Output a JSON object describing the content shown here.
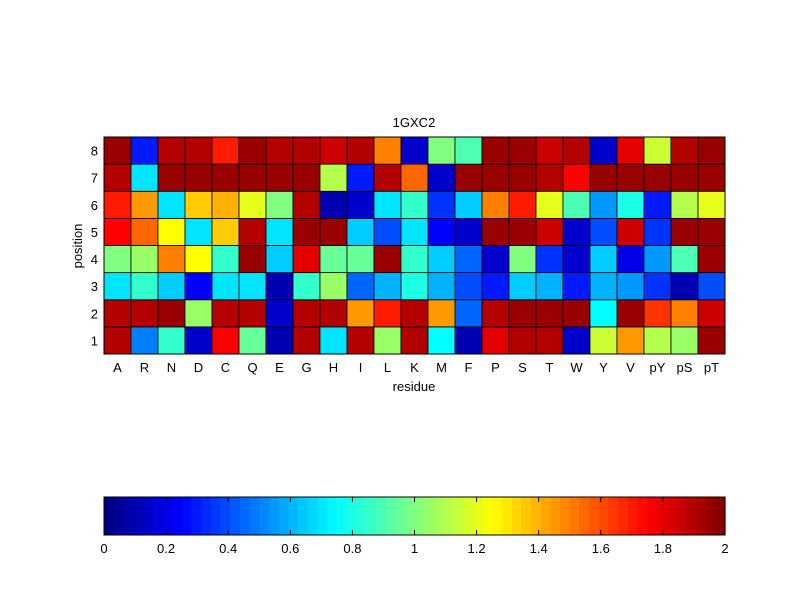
{
  "chart_data": {
    "type": "heatmap",
    "title": "1GXC2",
    "xlabel": "residue",
    "ylabel": "position",
    "x_categories": [
      "A",
      "R",
      "N",
      "D",
      "C",
      "Q",
      "E",
      "G",
      "H",
      "I",
      "L",
      "K",
      "M",
      "F",
      "P",
      "S",
      "T",
      "W",
      "Y",
      "V",
      "pY",
      "pS",
      "pT"
    ],
    "y_categories": [
      "1",
      "2",
      "3",
      "4",
      "5",
      "6",
      "7",
      "8"
    ],
    "values": [
      [
        1.9,
        0.5,
        0.85,
        0.15,
        1.75,
        0.95,
        0.1,
        1.9,
        0.7,
        1.9,
        1.05,
        1.9,
        0.75,
        0.1,
        1.8,
        1.9,
        1.9,
        0.15,
        1.15,
        1.45,
        1.1,
        1.05,
        1.95
      ],
      [
        1.9,
        1.9,
        1.95,
        1.05,
        1.9,
        1.9,
        0.15,
        1.9,
        1.9,
        1.45,
        1.7,
        1.9,
        1.45,
        0.45,
        1.9,
        1.95,
        1.95,
        1.95,
        0.75,
        1.95,
        1.65,
        1.5,
        1.85
      ],
      [
        0.7,
        0.85,
        0.65,
        0.25,
        0.7,
        0.7,
        0.1,
        0.85,
        1.05,
        0.45,
        0.6,
        0.8,
        0.6,
        0.4,
        0.3,
        0.65,
        0.6,
        0.3,
        0.6,
        0.55,
        0.35,
        0.1,
        0.4
      ],
      [
        1.0,
        1.05,
        1.5,
        1.25,
        0.85,
        1.95,
        0.65,
        1.8,
        0.95,
        0.95,
        1.95,
        0.85,
        0.65,
        0.45,
        0.15,
        1.0,
        0.35,
        0.15,
        0.65,
        0.2,
        0.55,
        0.9,
        1.95
      ],
      [
        1.75,
        1.55,
        1.25,
        0.7,
        1.35,
        1.9,
        0.7,
        1.95,
        1.95,
        0.65,
        0.4,
        0.7,
        0.25,
        0.15,
        1.95,
        1.95,
        1.85,
        0.15,
        0.4,
        1.85,
        0.35,
        1.95,
        1.95
      ],
      [
        1.7,
        1.45,
        0.7,
        1.35,
        1.4,
        1.2,
        1.0,
        1.9,
        0.1,
        0.15,
        0.7,
        0.85,
        0.35,
        0.65,
        1.5,
        1.7,
        1.2,
        0.9,
        0.55,
        0.8,
        0.3,
        1.1,
        1.2
      ],
      [
        1.9,
        0.7,
        1.95,
        1.95,
        1.95,
        1.95,
        1.95,
        1.95,
        1.1,
        0.3,
        1.9,
        1.55,
        0.15,
        1.95,
        1.95,
        1.95,
        1.9,
        1.75,
        1.95,
        1.95,
        1.95,
        1.95,
        1.95
      ],
      [
        1.95,
        0.3,
        1.9,
        1.9,
        1.7,
        1.95,
        1.9,
        1.9,
        1.85,
        1.9,
        1.5,
        0.15,
        1.0,
        0.9,
        1.95,
        1.95,
        1.85,
        1.9,
        0.15,
        1.8,
        1.15,
        1.9,
        1.95
      ]
    ],
    "zlim": [
      0,
      2
    ],
    "colormap": "jet",
    "colorbar": {
      "orientation": "horizontal",
      "placement": "bottom",
      "ticks": [
        0,
        0.2,
        0.4,
        0.6,
        0.8,
        1,
        1.2,
        1.4,
        1.6,
        1.8,
        2
      ],
      "tick_labels": [
        "0",
        "0.2",
        "0.4",
        "0.6",
        "0.8",
        "1",
        "1.2",
        "1.4",
        "1.6",
        "1.8",
        "2"
      ]
    },
    "grid": false
  }
}
